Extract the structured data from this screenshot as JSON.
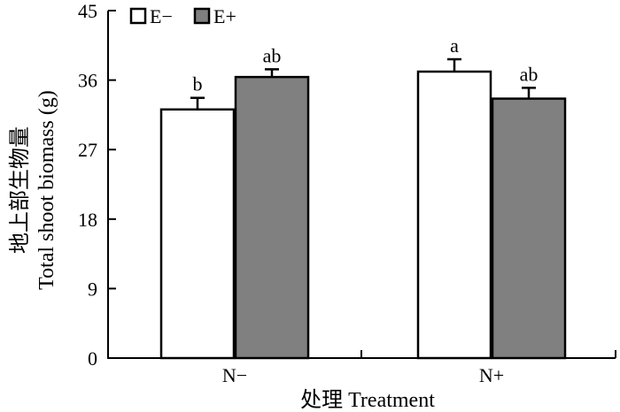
{
  "chart_data": {
    "type": "bar",
    "categories": [
      "N−",
      "N+"
    ],
    "series": [
      {
        "name": "E−",
        "values": [
          32.2,
          37.1
        ],
        "errors": [
          1.5,
          1.6
        ],
        "letters": [
          "b",
          "a"
        ],
        "color": "#ffffff"
      },
      {
        "name": "E+",
        "values": [
          36.4,
          33.6
        ],
        "errors": [
          1.0,
          1.4
        ],
        "letters": [
          "ab",
          "ab"
        ],
        "color": "#808080"
      }
    ],
    "ylim": [
      0,
      45
    ],
    "yticks": [
      0,
      9,
      18,
      27,
      36,
      45
    ],
    "ylabel_line1": "地上部生物量",
    "ylabel_line2": "Total shoot biomass (g)",
    "xlabel": "处理 Treatment",
    "legend_position": "top-left",
    "grid": false
  }
}
